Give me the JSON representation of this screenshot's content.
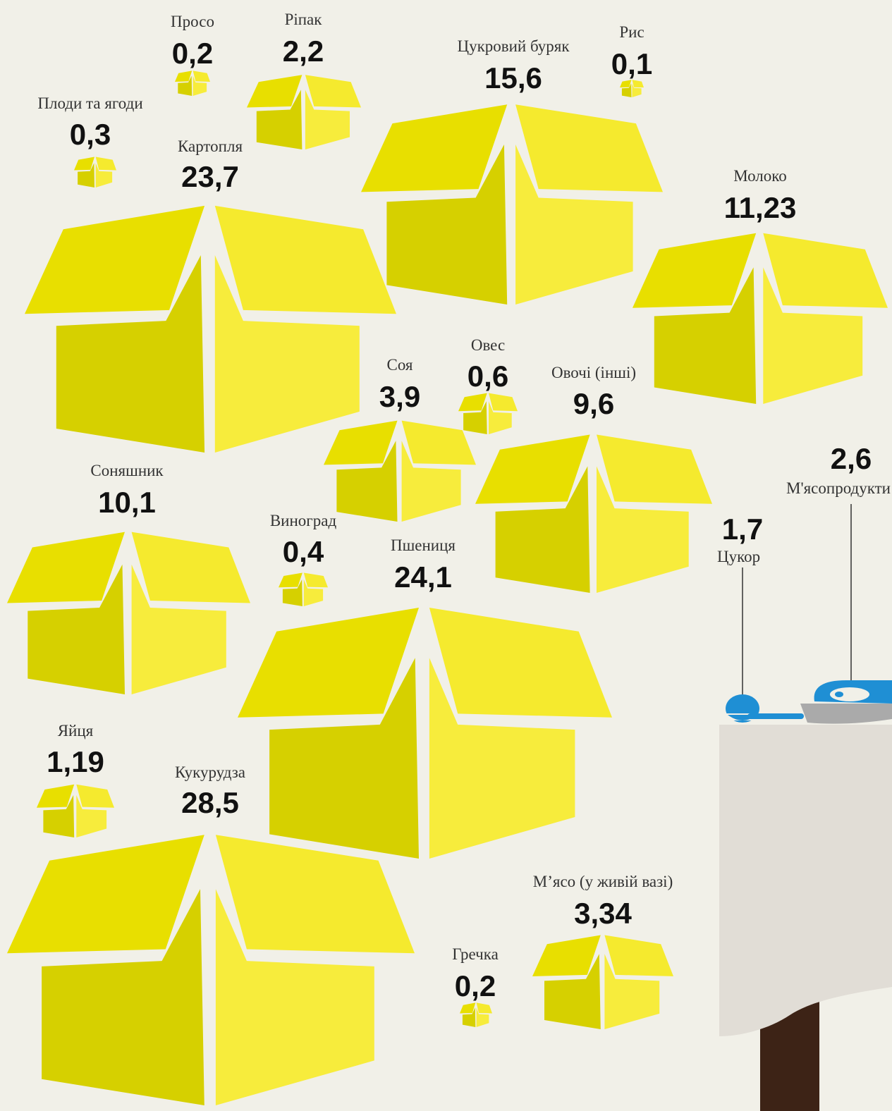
{
  "items": [
    {
      "name": "Просо",
      "value": "0,2"
    },
    {
      "name": "Ріпак",
      "value": "2,2"
    },
    {
      "name": "Цукровий буряк",
      "value": "15,6"
    },
    {
      "name": "Рис",
      "value": "0,1"
    },
    {
      "name": "Плоди та ягоди",
      "value": "0,3"
    },
    {
      "name": "Картопля",
      "value": "23,7"
    },
    {
      "name": "Молоко",
      "value": "11,23"
    },
    {
      "name": "Соя",
      "value": "3,9"
    },
    {
      "name": "Овес",
      "value": "0,6"
    },
    {
      "name": "Овочі (інші)",
      "value": "9,6"
    },
    {
      "name": "Соняшник",
      "value": "10,1"
    },
    {
      "name": "Виноград",
      "value": "0,4"
    },
    {
      "name": "Пшениця",
      "value": "24,1"
    },
    {
      "name": "Яйця",
      "value": "1,19"
    },
    {
      "name": "Кукурудза",
      "value": "28,5"
    },
    {
      "name": "М’ясо (у живій вазі)",
      "value": "3,34"
    },
    {
      "name": "Гречка",
      "value": "0,2"
    }
  ],
  "table_items": [
    {
      "name": "М'ясопродукти",
      "value": "2,6"
    },
    {
      "name": "Цукор",
      "value": "1,7"
    }
  ]
}
